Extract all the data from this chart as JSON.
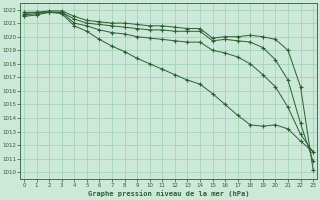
{
  "title": "Graphe pression niveau de la mer (hPa)",
  "background_color": "#cce8d8",
  "grid_color": "#9ecfb4",
  "line_color": "#2d5e32",
  "x_ticks": [
    0,
    1,
    2,
    3,
    4,
    5,
    6,
    7,
    8,
    9,
    10,
    11,
    12,
    13,
    14,
    15,
    16,
    17,
    18,
    19,
    20,
    21,
    22,
    23
  ],
  "y_ticks": [
    1010,
    1011,
    1012,
    1013,
    1014,
    1015,
    1016,
    1017,
    1018,
    1019,
    1020,
    1021,
    1022
  ],
  "ylim": [
    1009.5,
    1022.5
  ],
  "xlim": [
    -0.3,
    23.3
  ],
  "series": [
    [
      1021.8,
      1021.8,
      1021.9,
      1021.9,
      1021.5,
      1021.2,
      1021.1,
      1021.0,
      1021.0,
      1020.9,
      1020.8,
      1020.8,
      1020.7,
      1020.6,
      1020.6,
      1019.9,
      1020.0,
      1020.0,
      1020.1,
      1020.0,
      1019.8,
      1019.0,
      1016.3,
      1010.2
    ],
    [
      1021.7,
      1021.8,
      1021.8,
      1021.8,
      1021.3,
      1021.0,
      1020.9,
      1020.8,
      1020.7,
      1020.6,
      1020.5,
      1020.5,
      1020.4,
      1020.4,
      1020.4,
      1019.7,
      1019.8,
      1019.7,
      1019.6,
      1019.2,
      1018.3,
      1016.8,
      1013.6,
      1010.8
    ],
    [
      1021.6,
      1021.7,
      1021.8,
      1021.8,
      1021.0,
      1020.8,
      1020.5,
      1020.3,
      1020.2,
      1020.0,
      1019.9,
      1019.8,
      1019.7,
      1019.6,
      1019.6,
      1019.0,
      1018.8,
      1018.5,
      1018.0,
      1017.2,
      1016.3,
      1014.8,
      1012.8,
      1011.5
    ],
    [
      1021.5,
      1021.6,
      1021.8,
      1021.7,
      1020.8,
      1020.4,
      1019.8,
      1019.3,
      1018.9,
      1018.4,
      1018.0,
      1017.6,
      1017.2,
      1016.8,
      1016.5,
      1015.8,
      1015.0,
      1014.2,
      1013.5,
      1013.4,
      1013.5,
      1013.2,
      1012.3,
      1011.5
    ]
  ]
}
